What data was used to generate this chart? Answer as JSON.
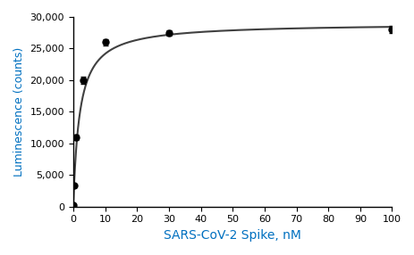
{
  "x_data": [
    0.1,
    0.3,
    1.0,
    3.0,
    10.0,
    30.0,
    100.0
  ],
  "y_data": [
    200,
    3300,
    11000,
    20000,
    26000,
    27500,
    28000
  ],
  "y_err": [
    100,
    200,
    400,
    600,
    500,
    400,
    600
  ],
  "Bmax": 29000,
  "Kd": 2.0,
  "xlabel": "SARS-CoV-2 Spike, nM",
  "ylabel": "Luminescence (counts)",
  "xlim": [
    0,
    100
  ],
  "ylim": [
    0,
    30000
  ],
  "xticks": [
    0,
    10,
    20,
    30,
    40,
    50,
    60,
    70,
    80,
    90,
    100
  ],
  "yticks": [
    0,
    5000,
    10000,
    15000,
    20000,
    25000,
    30000
  ],
  "axis_label_color": "#0070C0",
  "data_color": "#000000",
  "curve_color": "#404040",
  "marker": "o",
  "markersize": 5,
  "linewidth": 1.5,
  "figsize": [
    4.64,
    2.86
  ],
  "dpi": 100
}
